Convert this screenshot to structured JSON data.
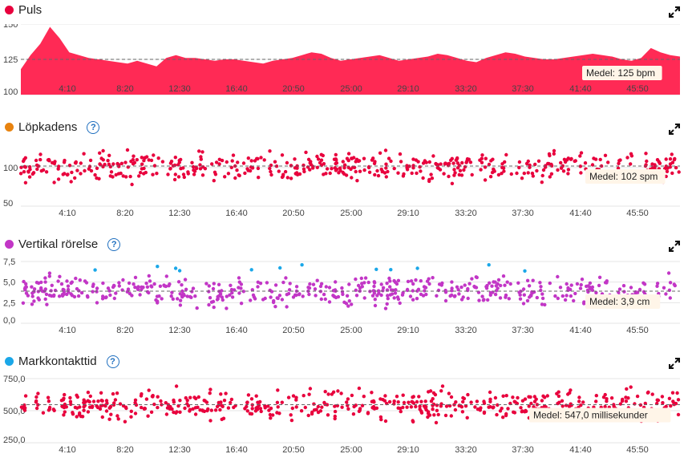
{
  "x_ticks": [
    "4:10",
    "8:20",
    "12:30",
    "16:40",
    "20:50",
    "25:00",
    "29:10",
    "33:20",
    "37:30",
    "41:40",
    "45:50"
  ],
  "charts": [
    {
      "id": "puls",
      "title": "Puls",
      "color": "#e8003d",
      "fill": "#ff2a55",
      "has_help": false,
      "chart_data": {
        "type": "area",
        "title": "Puls",
        "ylim": [
          100,
          150
        ],
        "yticks": [
          150,
          125,
          100
        ],
        "mean": 125,
        "mean_label": "Medel: 125 bpm",
        "series": [
          {
            "values": [
              118,
              128,
              136,
              148,
              140,
              130,
              128,
              126,
              125,
              124,
              123,
              122,
              124,
              122,
              120,
              126,
              128,
              126,
              126,
              125,
              124,
              125,
              125,
              124,
              123,
              122,
              124,
              125,
              126,
              128,
              130,
              129,
              126,
              124,
              125,
              126,
              127,
              128,
              126,
              124,
              125,
              126,
              127,
              129,
              128,
              126,
              124,
              123,
              126,
              128,
              130,
              129,
              127,
              126,
              125,
              125,
              126,
              127,
              128,
              129,
              128,
              127,
              125,
              124,
              126,
              133,
              130,
              128,
              127
            ]
          }
        ]
      }
    },
    {
      "id": "lopkadens",
      "title": "Löpkadens",
      "color": "#e8830f",
      "fill": "#e8003d",
      "has_help": true,
      "chart_data": {
        "type": "scatter",
        "title": "Löpkadens",
        "ylim": [
          50,
          130
        ],
        "yticks": [
          50,
          100
        ],
        "mean": 102,
        "mean_label": "Medel: 102 spm"
      }
    },
    {
      "id": "vertikal",
      "title": "Vertikal rörelse",
      "color": "#c236c6",
      "fill": "#c236c6",
      "accent": "#1aa7e8",
      "has_help": true,
      "chart_data": {
        "type": "scatter",
        "title": "Vertikal rörelse",
        "ylim": [
          0,
          7.5
        ],
        "yticks": [
          "7,5",
          "5,0",
          "2,5",
          "0,0"
        ],
        "mean": 3.9,
        "mean_label": "Medel: 3,9 cm"
      }
    },
    {
      "id": "markkontakt",
      "title": "Markkontakttid",
      "color": "#1aa7e8",
      "fill": "#e8003d",
      "has_help": true,
      "chart_data": {
        "type": "scatter",
        "title": "Markkontakttid",
        "ylim": [
          250,
          750
        ],
        "yticks": [
          "750,0",
          "500,0",
          "250,0"
        ],
        "mean": 547.0,
        "mean_label": "Medel: 547,0 millisekunder"
      }
    }
  ]
}
